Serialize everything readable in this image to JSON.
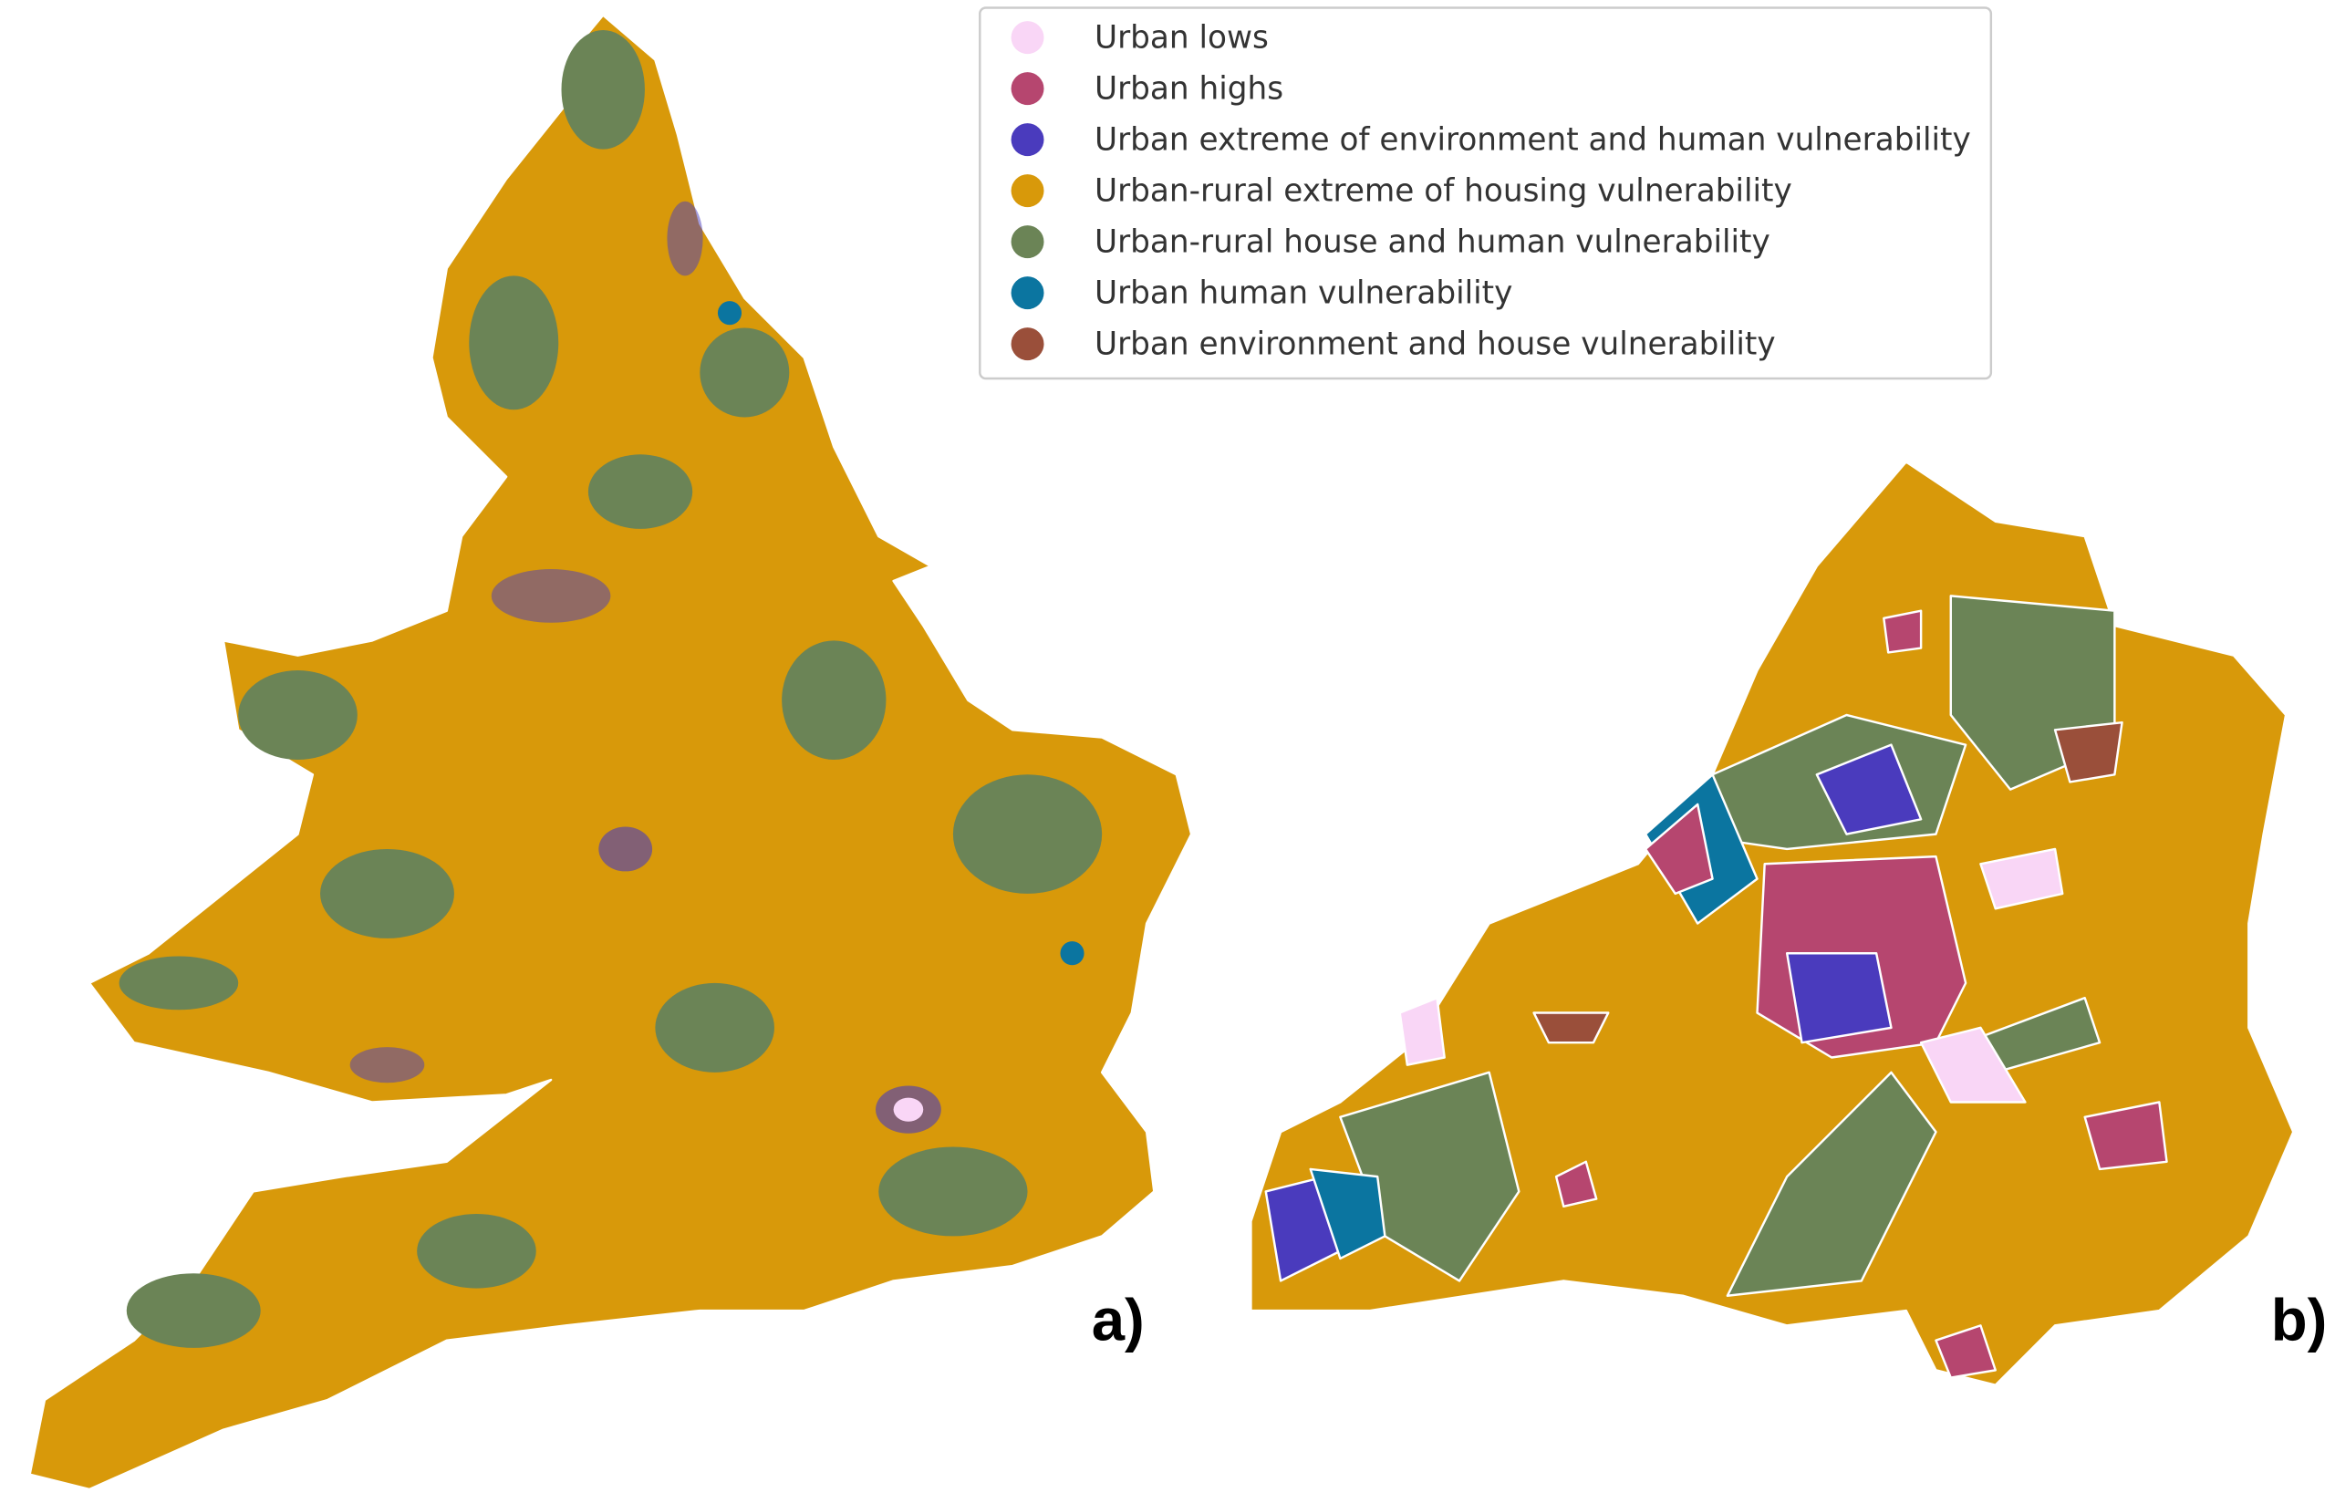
{
  "legend": {
    "items": [
      {
        "label": "Urban lows",
        "color": "#f9d6f6"
      },
      {
        "label": "Urban highs",
        "color": "#b6466f"
      },
      {
        "label": "Urban extreme of environment and human vulnerability",
        "color": "#4a3bbd"
      },
      {
        "label": "Urban-rural extreme of housing vulnerability",
        "color": "#d8990a"
      },
      {
        "label": "Urban-rural house and human vulnerability",
        "color": "#6b8456"
      },
      {
        "label": "Urban human vulnerability",
        "color": "#0b75a0"
      },
      {
        "label": "Urban environment and house vulnerability",
        "color": "#9a4f3a"
      }
    ]
  },
  "panels": [
    {
      "label": "a)"
    },
    {
      "label": "b)"
    }
  ]
}
